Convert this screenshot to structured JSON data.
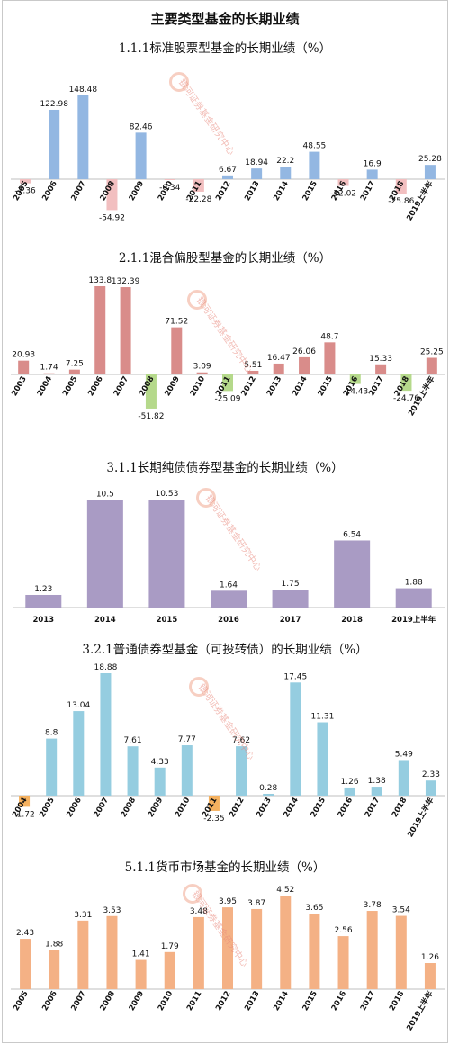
{
  "page_title": "主要类型基金的长期业绩",
  "watermark_text": "银河证券基金研究中心",
  "chart_data": [
    {
      "type": "bar",
      "title": "1.1.1标准股票型基金的长期业绩（%）",
      "color": "#93b7e2",
      "neg_color": "#f2bfc0",
      "categories": [
        "2005",
        "2006",
        "2007",
        "2008",
        "2009",
        "2010",
        "2011",
        "2012",
        "2013",
        "2014",
        "2015",
        "2016",
        "2017",
        "2018",
        "2019上半年"
      ],
      "values": [
        -7.36,
        122.98,
        148.48,
        -54.92,
        82.46,
        -0.34,
        -22.28,
        6.67,
        18.94,
        22.2,
        48.55,
        -12.02,
        16.9,
        -25.86,
        25.28
      ],
      "labels": [
        "-7.36",
        "122.98",
        "148.48",
        "-54.92",
        "82.46",
        "-0.34",
        "-22.28",
        "6.67",
        "18.94",
        "22.2",
        "48.55",
        "-12.02",
        "16.9",
        "-25.86",
        "25.28"
      ]
    },
    {
      "type": "bar",
      "title": "2.1.1混合偏股型基金的长期业绩（%）",
      "color": "#d98c8a",
      "neg_color": "#b5d98b",
      "categories": [
        "2003",
        "2004",
        "2005",
        "2006",
        "2007",
        "2008",
        "2009",
        "2010",
        "2011",
        "2012",
        "2013",
        "2014",
        "2015",
        "2016",
        "2017",
        "2018",
        "2019上半年"
      ],
      "values": [
        20.93,
        1.74,
        7.25,
        133.8,
        132.39,
        -51.82,
        71.52,
        3.09,
        -25.09,
        5.51,
        16.47,
        26.06,
        48.7,
        -14.43,
        15.33,
        -24.76,
        25.25
      ],
      "labels": [
        "20.93",
        "1.74",
        "7.25",
        "133.8",
        "132.39",
        "-51.82",
        "71.52",
        "3.09",
        "-25.09",
        "5.51",
        "16.47",
        "26.06",
        "48.7",
        "-14.43",
        "15.33",
        "-24.76",
        "25.25"
      ]
    },
    {
      "type": "bar",
      "title": "3.1.1长期纯债债券型基金的长期业绩（%）",
      "color": "#a99bc4",
      "neg_color": "#a99bc4",
      "categories": [
        "2013",
        "2014",
        "2015",
        "2016",
        "2017",
        "2018",
        "2019上半年"
      ],
      "values": [
        1.23,
        10.5,
        10.53,
        1.64,
        1.75,
        6.54,
        1.88
      ],
      "labels": [
        "1.23",
        "10.5",
        "10.53",
        "1.64",
        "1.75",
        "6.54",
        "1.88"
      ]
    },
    {
      "type": "bar",
      "title": "3.2.1普通债券型基金（可投转债）的长期业绩（%）",
      "color": "#95cde0",
      "neg_color": "#f5b15f",
      "categories": [
        "2004",
        "2005",
        "2006",
        "2007",
        "2008",
        "2009",
        "2010",
        "2011",
        "2012",
        "2013",
        "2014",
        "2015",
        "2016",
        "2017",
        "2018",
        "2019上半年"
      ],
      "values": [
        -1.72,
        8.8,
        13.04,
        18.88,
        7.61,
        4.33,
        7.77,
        -2.35,
        7.62,
        0.28,
        17.45,
        11.31,
        1.26,
        1.38,
        5.49,
        2.33
      ],
      "labels": [
        "-1.72",
        "8.8",
        "13.04",
        "18.88",
        "7.61",
        "4.33",
        "7.77",
        "-2.35",
        "7.62",
        "0.28",
        "17.45",
        "11.31",
        "1.26",
        "1.38",
        "5.49",
        "2.33"
      ]
    },
    {
      "type": "bar",
      "title": "5.1.1货币市场基金的长期业绩（%）",
      "color": "#f4b185",
      "neg_color": "#f4b185",
      "categories": [
        "2005",
        "2006",
        "2007",
        "2008",
        "2009",
        "2010",
        "2011",
        "2012",
        "2013",
        "2014",
        "2015",
        "2016",
        "2017",
        "2018",
        "2019上半年"
      ],
      "values": [
        2.43,
        1.88,
        3.31,
        3.53,
        1.41,
        1.79,
        3.48,
        3.95,
        3.87,
        4.52,
        3.65,
        2.56,
        3.78,
        3.54,
        1.26
      ],
      "labels": [
        "2.43",
        "1.88",
        "3.31",
        "3.53",
        "1.41",
        "1.79",
        "3.48",
        "3.95",
        "3.87",
        "4.52",
        "3.65",
        "2.56",
        "3.78",
        "3.54",
        "1.26"
      ]
    }
  ]
}
